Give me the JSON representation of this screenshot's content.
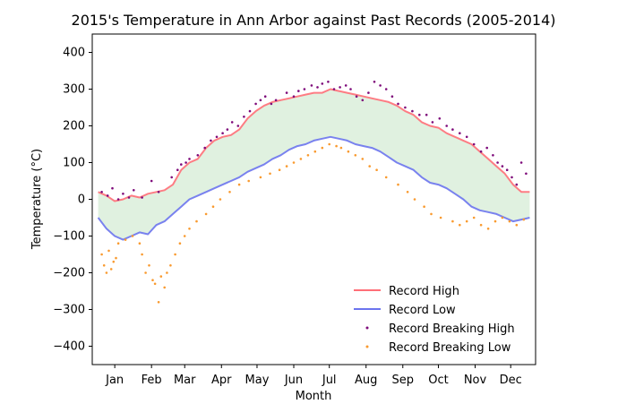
{
  "chart_data": {
    "type": "line",
    "title": "2015's Temperature in Ann Arbor against Past Records (2005-2014)",
    "xlabel": "Month",
    "ylabel": "Temperature (°C)",
    "ylim": [
      -450,
      450
    ],
    "yticks": [
      -400,
      -300,
      -200,
      -100,
      0,
      100,
      200,
      300,
      400
    ],
    "ytick_labels": [
      "−400",
      "−300",
      "−200",
      "−100",
      "0",
      "100",
      "200",
      "300",
      "400"
    ],
    "xticks": [
      15,
      46,
      74,
      105,
      135,
      166,
      196,
      227,
      258,
      288,
      319,
      349
    ],
    "xtick_labels": [
      "Jan",
      "Feb",
      "Mar",
      "Apr",
      "May",
      "Jun",
      "Jul",
      "Aug",
      "Sep",
      "Oct",
      "Nov",
      "Dec"
    ],
    "xlim": [
      -4,
      370
    ],
    "grid": false,
    "legend_position": "lower-right",
    "series": [
      {
        "name": "Record High",
        "color": "#ff6f78",
        "style": "line",
        "x": [
          1,
          8,
          15,
          22,
          29,
          36,
          43,
          50,
          57,
          64,
          71,
          78,
          85,
          92,
          99,
          106,
          113,
          120,
          127,
          134,
          141,
          148,
          155,
          162,
          169,
          176,
          183,
          190,
          197,
          204,
          211,
          218,
          225,
          232,
          239,
          246,
          253,
          260,
          267,
          274,
          281,
          288,
          295,
          302,
          309,
          316,
          323,
          330,
          337,
          344,
          351,
          358,
          365
        ],
        "values": [
          20,
          10,
          -5,
          0,
          10,
          5,
          15,
          20,
          25,
          40,
          80,
          100,
          110,
          140,
          160,
          170,
          175,
          190,
          220,
          240,
          255,
          265,
          270,
          275,
          280,
          285,
          290,
          290,
          300,
          295,
          290,
          285,
          280,
          275,
          270,
          265,
          255,
          240,
          230,
          210,
          200,
          195,
          180,
          170,
          160,
          150,
          130,
          110,
          90,
          70,
          40,
          20,
          20
        ]
      },
      {
        "name": "Record Low",
        "color": "#6b74ee",
        "style": "line",
        "x": [
          1,
          8,
          15,
          22,
          29,
          36,
          43,
          50,
          57,
          64,
          71,
          78,
          85,
          92,
          99,
          106,
          113,
          120,
          127,
          134,
          141,
          148,
          155,
          162,
          169,
          176,
          183,
          190,
          197,
          204,
          211,
          218,
          225,
          232,
          239,
          246,
          253,
          260,
          267,
          274,
          281,
          288,
          295,
          302,
          309,
          316,
          323,
          330,
          337,
          344,
          351,
          358,
          365
        ],
        "values": [
          -50,
          -80,
          -100,
          -110,
          -100,
          -90,
          -95,
          -70,
          -60,
          -40,
          -20,
          0,
          10,
          20,
          30,
          40,
          50,
          60,
          75,
          85,
          95,
          110,
          120,
          135,
          145,
          150,
          160,
          165,
          170,
          165,
          160,
          150,
          145,
          140,
          130,
          115,
          100,
          90,
          80,
          60,
          45,
          40,
          30,
          15,
          0,
          -20,
          -30,
          -35,
          -40,
          -50,
          -60,
          -55,
          -50
        ]
      },
      {
        "name": "Record Breaking High",
        "color": "#7e0a7a",
        "style": "scatter",
        "x": [
          4,
          9,
          13,
          18,
          22,
          27,
          31,
          38,
          46,
          52,
          63,
          68,
          71,
          75,
          78,
          85,
          91,
          96,
          101,
          106,
          110,
          114,
          119,
          124,
          129,
          134,
          138,
          142,
          147,
          151,
          160,
          166,
          170,
          175,
          181,
          186,
          190,
          195,
          200,
          205,
          210,
          214,
          219,
          224,
          229,
          234,
          239,
          244,
          249,
          254,
          260,
          266,
          272,
          278,
          283,
          289,
          295,
          300,
          306,
          312,
          318,
          324,
          329,
          334,
          338,
          342,
          346,
          350,
          354,
          358,
          362
        ],
        "values": [
          20,
          10,
          30,
          0,
          15,
          5,
          25,
          5,
          50,
          20,
          60,
          80,
          95,
          100,
          110,
          120,
          140,
          160,
          170,
          180,
          190,
          210,
          200,
          225,
          240,
          260,
          270,
          280,
          260,
          270,
          290,
          280,
          295,
          300,
          310,
          305,
          315,
          320,
          300,
          305,
          310,
          300,
          280,
          270,
          290,
          320,
          310,
          300,
          280,
          260,
          250,
          240,
          230,
          230,
          210,
          220,
          200,
          190,
          180,
          170,
          150,
          130,
          140,
          120,
          100,
          90,
          80,
          60,
          40,
          100,
          70
        ]
      },
      {
        "name": "Record Breaking Low",
        "color": "#f99a2f",
        "style": "scatter",
        "x": [
          4,
          6,
          8,
          10,
          12,
          14,
          16,
          18,
          24,
          30,
          36,
          38,
          41,
          44,
          47,
          49,
          52,
          54,
          57,
          59,
          62,
          66,
          70,
          74,
          78,
          84,
          92,
          98,
          104,
          112,
          120,
          128,
          138,
          146,
          154,
          160,
          166,
          172,
          178,
          184,
          190,
          196,
          202,
          206,
          212,
          218,
          224,
          230,
          236,
          244,
          254,
          262,
          268,
          276,
          282,
          290,
          300,
          306,
          312,
          318,
          324,
          330,
          336,
          342,
          348,
          354,
          360
        ],
        "values": [
          -150,
          -180,
          -200,
          -140,
          -190,
          -170,
          -160,
          -120,
          -110,
          -100,
          -120,
          -150,
          -200,
          -180,
          -220,
          -230,
          -280,
          -210,
          -240,
          -200,
          -180,
          -150,
          -120,
          -100,
          -80,
          -60,
          -40,
          -20,
          0,
          20,
          40,
          50,
          60,
          70,
          80,
          90,
          100,
          110,
          120,
          130,
          140,
          150,
          145,
          140,
          130,
          120,
          110,
          90,
          80,
          60,
          40,
          20,
          0,
          -20,
          -40,
          -50,
          -60,
          -70,
          -60,
          -50,
          -70,
          -80,
          -60,
          -50,
          -60,
          -70,
          -55
        ]
      }
    ]
  }
}
